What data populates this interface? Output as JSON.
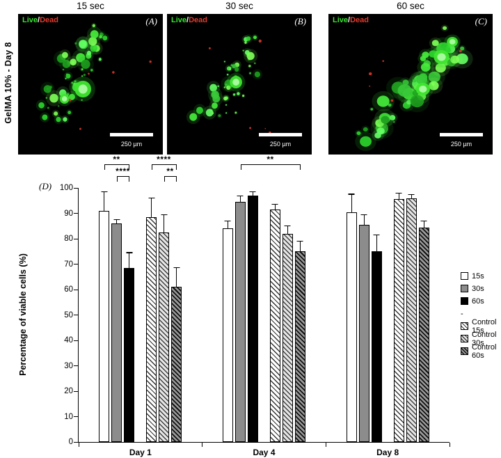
{
  "figure": {
    "side_label": "GelMA 10%  -  Day 8",
    "panel_d_label": "(D)",
    "overlay": {
      "live": "Live",
      "sep": "/",
      "dead": "Dead"
    },
    "scale_label": "250 µm",
    "panels": [
      {
        "header": "15 sec",
        "letter": "(A)"
      },
      {
        "header": "30 sec",
        "letter": "(B)"
      },
      {
        "header": "60 sec",
        "letter": "(C)"
      }
    ]
  },
  "colors": {
    "live_green": "#35e52f",
    "dead_red": "#e23b2e",
    "bar_white": "#ffffff",
    "bar_gray": "#8c8c8c",
    "bar_black": "#000000"
  },
  "chart_data": {
    "type": "bar",
    "title": "",
    "xlabel": "",
    "ylabel": "Percentage of viable cells (%)",
    "ylim": [
      0,
      100
    ],
    "ytick_step": 10,
    "grid": false,
    "legend_position": "right",
    "categories": [
      "Day 1",
      "Day 4",
      "Day 8"
    ],
    "series": [
      {
        "name": "15s",
        "style": "white",
        "values": [
          91,
          84,
          90.5
        ],
        "errors": [
          8,
          3.5,
          7.5
        ]
      },
      {
        "name": "30s",
        "style": "gray",
        "values": [
          86,
          94.5,
          85.5
        ],
        "errors": [
          2,
          2.8,
          4.5
        ]
      },
      {
        "name": "60s",
        "style": "black",
        "values": [
          68.5,
          97,
          75
        ],
        "errors": [
          6.5,
          2,
          7
        ]
      },
      {
        "name": "Control 15s",
        "style": "hatch1",
        "values": [
          88.5,
          91.5,
          95.5
        ],
        "errors": [
          8,
          2.5,
          3
        ]
      },
      {
        "name": "Control 30s",
        "style": "hatch2",
        "values": [
          82.5,
          82,
          96
        ],
        "errors": [
          7.5,
          3.5,
          1.8
        ]
      },
      {
        "name": "Control 60s",
        "style": "hatch3",
        "values": [
          61,
          75,
          84.5
        ],
        "errors": [
          8,
          4.5,
          3
        ]
      }
    ],
    "legend_items": [
      "15s",
      "30s",
      "60s",
      "-",
      "Control 15s",
      "Control 30s",
      "Control 60s"
    ],
    "significance": [
      {
        "group": 0,
        "from": 0,
        "to": 2,
        "label": "**",
        "level": 2
      },
      {
        "group": 0,
        "from": 1,
        "to": 2,
        "label": "****",
        "level": 1
      },
      {
        "group": 0,
        "from": 3,
        "to": 5,
        "label": "****",
        "level": 2
      },
      {
        "group": 0,
        "from": 4,
        "to": 5,
        "label": "**",
        "level": 1
      },
      {
        "group": 1,
        "from": 1,
        "to": 5,
        "label": "**",
        "level": 2
      }
    ]
  }
}
